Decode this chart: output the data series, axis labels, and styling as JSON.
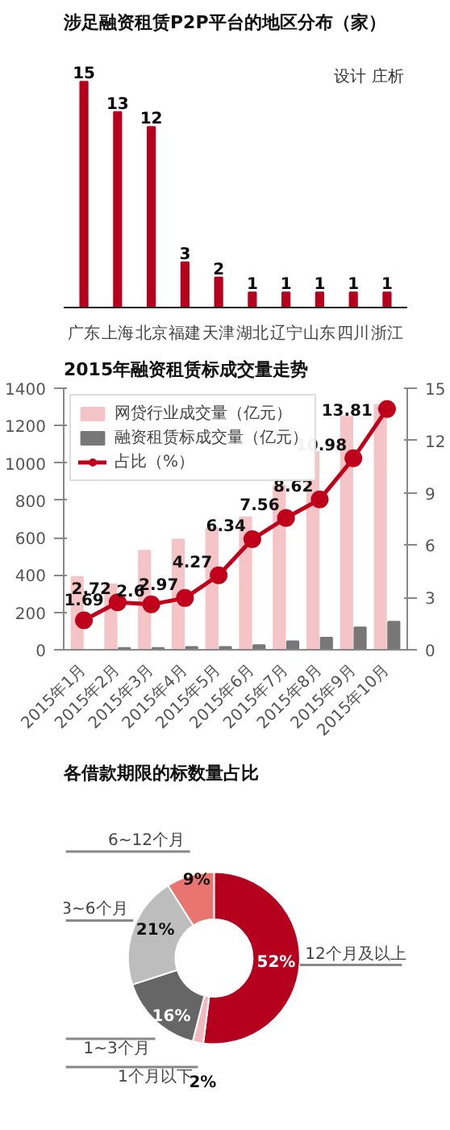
{
  "chart_data": [
    {
      "type": "bar",
      "title": "涉足融资租赁P2P平台的地区分布（家）",
      "annotations": [
        "设计 庄析"
      ],
      "categories": [
        "广东",
        "上海",
        "北京",
        "福建",
        "天津",
        "湖北",
        "辽宁",
        "山东",
        "四川",
        "浙江"
      ],
      "values": [
        15,
        13,
        12,
        3,
        2,
        1,
        1,
        1,
        1,
        1
      ],
      "color": "#b5001e",
      "data_labels": true,
      "tick_labels": "x"
    },
    {
      "type": "bar",
      "title": "2015年融资租赁标成交量走势",
      "categories": [
        "2015年1月",
        "2015年2月",
        "2015年3月",
        "2015年4月",
        "2015年5月",
        "2015年6月",
        "2015年7月",
        "2015年8月",
        "2015年9月",
        "2015年10月"
      ],
      "series": [
        {
          "name": "网贷行业成交量（亿元）",
          "color": "#f4c4c6",
          "values": [
            390,
            350,
            530,
            590,
            650,
            710,
            880,
            1060,
            1250,
            1310
          ]
        },
        {
          "name": "融资租赁标成交量（亿元）",
          "color": "#777777",
          "values": [
            null,
            10,
            10,
            15,
            15,
            25,
            45,
            65,
            120,
            150
          ]
        },
        {
          "name": "占比（%）",
          "type": "line",
          "axis": "y2",
          "color": "#c0001a",
          "marker": "circle",
          "values": [
            1.69,
            2.72,
            2.6,
            2.97,
            4.27,
            6.34,
            7.56,
            8.62,
            10.98,
            13.81
          ],
          "value_labels": [
            "1.69",
            "2.72",
            "2.6",
            "2.97",
            "4.27",
            "6.34",
            "7.56",
            "8.62",
            "10.98",
            "13.81"
          ]
        }
      ],
      "ylim": [
        0,
        1400
      ],
      "yticks": [
        0,
        200,
        400,
        600,
        800,
        1000,
        1200,
        1400
      ],
      "y2lim": [
        0,
        15
      ],
      "y2ticks": [
        0,
        3,
        6,
        9,
        12,
        15
      ],
      "legend": "top left",
      "grid": false
    },
    {
      "type": "donut",
      "title": "各借款期限的标数量占比",
      "categories": [
        "12个月及以上",
        "1个月以下",
        "1~3个月",
        "3~6个月",
        "6~12个月"
      ],
      "values": [
        52,
        2,
        16,
        21,
        9
      ],
      "colors": [
        "#b5001e",
        "#f2b8bc",
        "#666666",
        "#bdbdbd",
        "#e8756f"
      ],
      "value_labels": [
        "52%",
        "2%",
        "16%",
        "21%",
        "9%"
      ]
    }
  ]
}
